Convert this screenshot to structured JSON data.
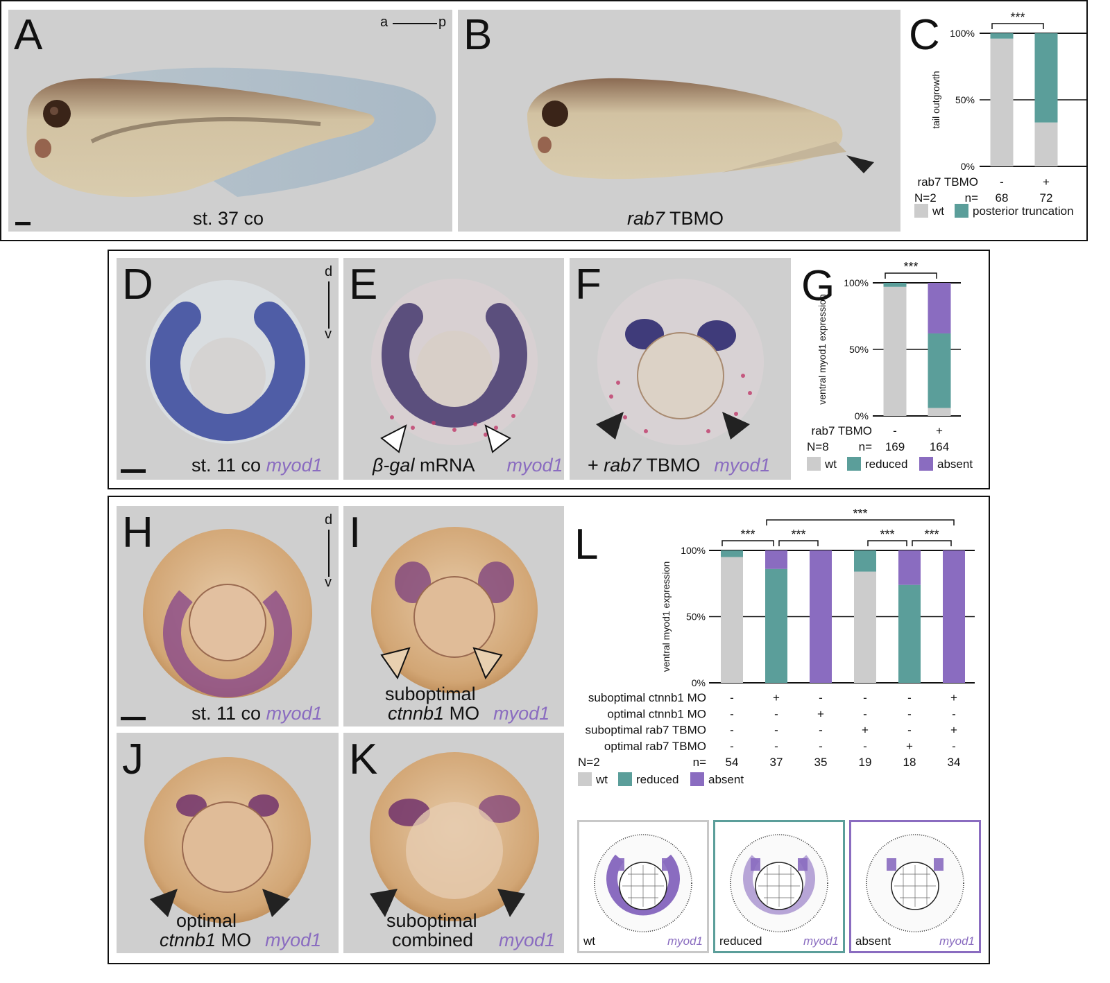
{
  "panels": {
    "A": {
      "letter": "A",
      "caption": "st. 37 co",
      "axis_a": "a",
      "axis_p": "p"
    },
    "B": {
      "letter": "B",
      "caption_gene": "rab7",
      "caption_rest": " TBMO"
    },
    "C": {
      "letter": "C"
    },
    "D": {
      "letter": "D",
      "caption": "st. 11 co ",
      "gene": "myod1",
      "axis_d": "d",
      "axis_v": "v"
    },
    "E": {
      "letter": "E",
      "caption_gene": "β-gal",
      "caption_rest": " mRNA",
      "gene": "myod1"
    },
    "F": {
      "letter": "F",
      "caption_pre": "+ ",
      "caption_gene": "rab7",
      "caption_rest": " TBMO",
      "gene": "myod1"
    },
    "G": {
      "letter": "G"
    },
    "H": {
      "letter": "H",
      "caption": "st. 11 co ",
      "gene": "myod1",
      "axis_d": "d",
      "axis_v": "v"
    },
    "I": {
      "letter": "I",
      "line1": "suboptimal",
      "line2_gene": "ctnnb1",
      "line2_rest": " MO",
      "gene": "myod1"
    },
    "J": {
      "letter": "J",
      "line1": "optimal",
      "line2_gene": "ctnnb1",
      "line2_rest": " MO",
      "gene": "myod1"
    },
    "K": {
      "letter": "K",
      "line1": "suboptimal",
      "line2": "combined",
      "gene": "myod1"
    },
    "L": {
      "letter": "L"
    }
  },
  "schematics": [
    {
      "label": "wt",
      "gene": "myod1",
      "border": "#c8c8c8"
    },
    {
      "label": "reduced",
      "gene": "myod1",
      "border": "#5b9e9a"
    },
    {
      "label": "absent",
      "gene": "myod1",
      "border": "#8a6cc0"
    }
  ],
  "colors": {
    "wt": "#cccccc",
    "reduced": "#5b9e9a",
    "truncation": "#5b9e9a",
    "absent": "#8a6cc0"
  },
  "chart_data": [
    {
      "id": "C",
      "type": "bar",
      "stacked": true,
      "ylabel": "tail outgrowth",
      "yticks": [
        "0%",
        "50%",
        "100%"
      ],
      "ylim": [
        0,
        100
      ],
      "conditions": [
        {
          "label": "rab7 TBMO",
          "values": [
            "-",
            "+"
          ]
        }
      ],
      "N": "N=2",
      "n_label": "n=",
      "n": [
        "68",
        "72"
      ],
      "series": [
        {
          "name": "wt",
          "values": [
            96,
            33
          ]
        },
        {
          "name": "posterior truncation",
          "values": [
            4,
            67
          ]
        }
      ],
      "significance": [
        {
          "from": 0,
          "to": 1,
          "label": "***"
        }
      ]
    },
    {
      "id": "G",
      "type": "bar",
      "stacked": true,
      "ylabel": "ventral myod1 expression",
      "yticks": [
        "0%",
        "50%",
        "100%"
      ],
      "ylim": [
        0,
        100
      ],
      "conditions": [
        {
          "label": "rab7 TBMO",
          "values": [
            "-",
            "+"
          ]
        }
      ],
      "N": "N=8",
      "n_label": "n=",
      "n": [
        "169",
        "164"
      ],
      "series": [
        {
          "name": "wt",
          "values": [
            97,
            6
          ]
        },
        {
          "name": "reduced",
          "values": [
            3,
            56
          ]
        },
        {
          "name": "absent",
          "values": [
            0,
            38
          ]
        }
      ],
      "significance": [
        {
          "from": 0,
          "to": 1,
          "label": "***"
        }
      ]
    },
    {
      "id": "L",
      "type": "bar",
      "stacked": true,
      "ylabel": "ventral myod1 expression",
      "yticks": [
        "0%",
        "50%",
        "100%"
      ],
      "ylim": [
        0,
        100
      ],
      "conditions": [
        {
          "label": "suboptimal ctnnb1 MO",
          "values": [
            "-",
            "+",
            "-",
            "-",
            "-",
            "+"
          ]
        },
        {
          "label": "optimal ctnnb1 MO",
          "values": [
            "-",
            "-",
            "+",
            "-",
            "-",
            "-"
          ]
        },
        {
          "label": "suboptimal rab7 TBMO",
          "values": [
            "-",
            "-",
            "-",
            "+",
            "-",
            "+"
          ]
        },
        {
          "label": "optimal rab7 TBMO",
          "values": [
            "-",
            "-",
            "-",
            "-",
            "+",
            "-"
          ]
        }
      ],
      "N": "N=2",
      "n_label": "n=",
      "n": [
        "54",
        "37",
        "35",
        "19",
        "18",
        "34"
      ],
      "series": [
        {
          "name": "wt",
          "values": [
            95,
            0,
            0,
            84,
            0,
            0
          ]
        },
        {
          "name": "reduced",
          "values": [
            5,
            86,
            0,
            16,
            74,
            0
          ]
        },
        {
          "name": "absent",
          "values": [
            0,
            14,
            100,
            0,
            26,
            100
          ]
        }
      ],
      "significance": [
        {
          "from": 0,
          "to": 1,
          "label": "***"
        },
        {
          "from": 1,
          "to": 2,
          "label": "***"
        },
        {
          "from": 3,
          "to": 4,
          "label": "***"
        },
        {
          "from": 4,
          "to": 5,
          "label": "***"
        },
        {
          "from": 1,
          "to": 5,
          "label": "***",
          "level": 2
        }
      ]
    }
  ]
}
